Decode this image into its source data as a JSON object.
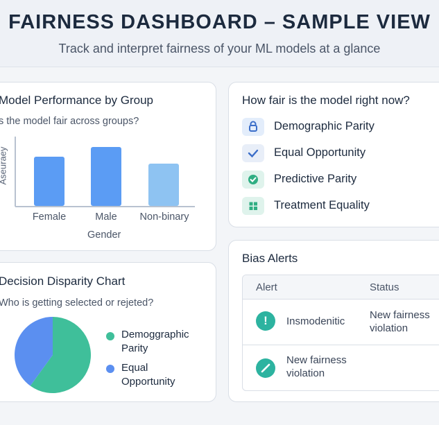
{
  "header": {
    "title": "FAIRNESS DASHBOARD – SAMPLE VIEW",
    "subtitle": "Track and interpret fairness of your ML models at a glance"
  },
  "performance": {
    "title": "Model Performance by Group",
    "subtitle": "s the model fair across groups?",
    "chart_data": {
      "type": "bar",
      "categories": [
        "Female",
        "Male",
        "Non-binary"
      ],
      "values": [
        0.71,
        0.85,
        0.61
      ],
      "ylim": [
        0,
        1
      ],
      "xlabel": "Gender",
      "ylabel": "Aseuraey",
      "colors": [
        "#5b9cf4",
        "#5b9cf4",
        "#8ec3f2"
      ],
      "grid": false
    }
  },
  "fairness_now": {
    "title": "How fair is the model right now?",
    "metrics": [
      {
        "label": "Demographic Parity",
        "icon": "lock-icon",
        "icon_bg": "#e3edfb",
        "icon_color": "#3b6ec9"
      },
      {
        "label": "Equal Opportunity",
        "icon": "check-icon",
        "icon_bg": "#e8eef8",
        "icon_color": "#3b6ec9"
      },
      {
        "label": "Predictive Parity",
        "icon": "check-circle-icon",
        "icon_bg": "#dff3ec",
        "icon_color": "#2fae83"
      },
      {
        "label": "Treatment Equality",
        "icon": "grid-icon",
        "icon_bg": "#dff3ec",
        "icon_color": "#2fae83"
      }
    ]
  },
  "disparity": {
    "title": "Decision Disparity Chart",
    "subtitle": "Who is getting selected or rejeted?",
    "chart_data": {
      "type": "pie",
      "slices": [
        {
          "label": "Demoggraphic Parity",
          "value": 60,
          "color": "#3fbf9a"
        },
        {
          "label": "Equal Opportunity",
          "value": 40,
          "color": "#5b8ff0"
        }
      ]
    }
  },
  "alerts": {
    "title": "Bias Alerts",
    "columns": [
      "Alert",
      "Status"
    ],
    "rows": [
      {
        "alert": "Insmodenitic",
        "status": "New fairness violation",
        "icon": "exclamation-icon",
        "color": "#2db3a0"
      },
      {
        "alert": "New fairness violation",
        "status": "",
        "icon": "slash-icon",
        "color": "#2db3a0"
      }
    ]
  }
}
